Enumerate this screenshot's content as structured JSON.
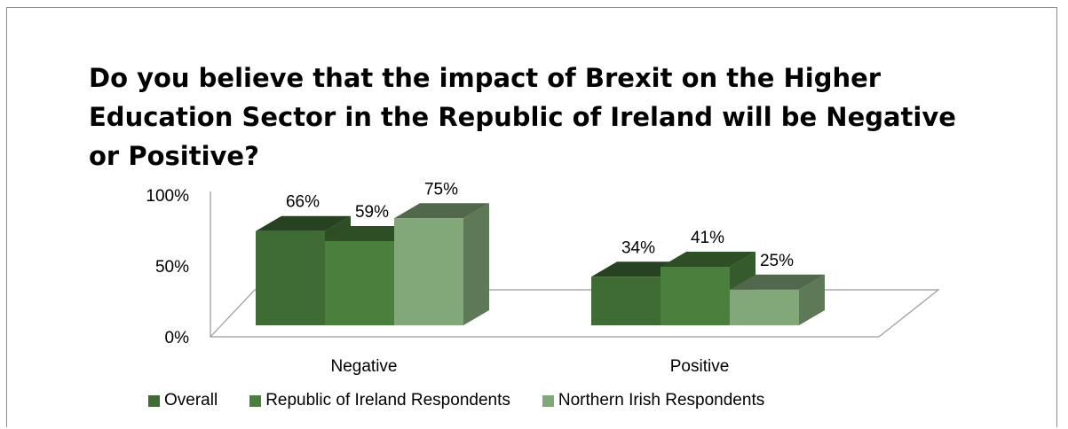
{
  "chart_data": {
    "type": "bar",
    "title": "Do you believe that the impact of Brexit on the Higher Education Sector in the Republic of Ireland will be Negative or Positive?",
    "categories": [
      "Negative",
      "Positive"
    ],
    "series": [
      {
        "name": "Overall",
        "values": [
          66,
          34
        ],
        "color": "#3f6b34"
      },
      {
        "name": "Republic of Ireland Respondents",
        "values": [
          59,
          41
        ],
        "color": "#4a7f3d"
      },
      {
        "name": "Northern Irish Respondents",
        "values": [
          75,
          25
        ],
        "color": "#82a87a"
      }
    ],
    "value_labels": [
      [
        "66%",
        "34%"
      ],
      [
        "59%",
        "41%"
      ],
      [
        "75%",
        "25%"
      ]
    ],
    "yticks": [
      "0%",
      "50%",
      "100%"
    ],
    "ylim": [
      0,
      100
    ],
    "legend_position": "bottom",
    "grid": false
  }
}
